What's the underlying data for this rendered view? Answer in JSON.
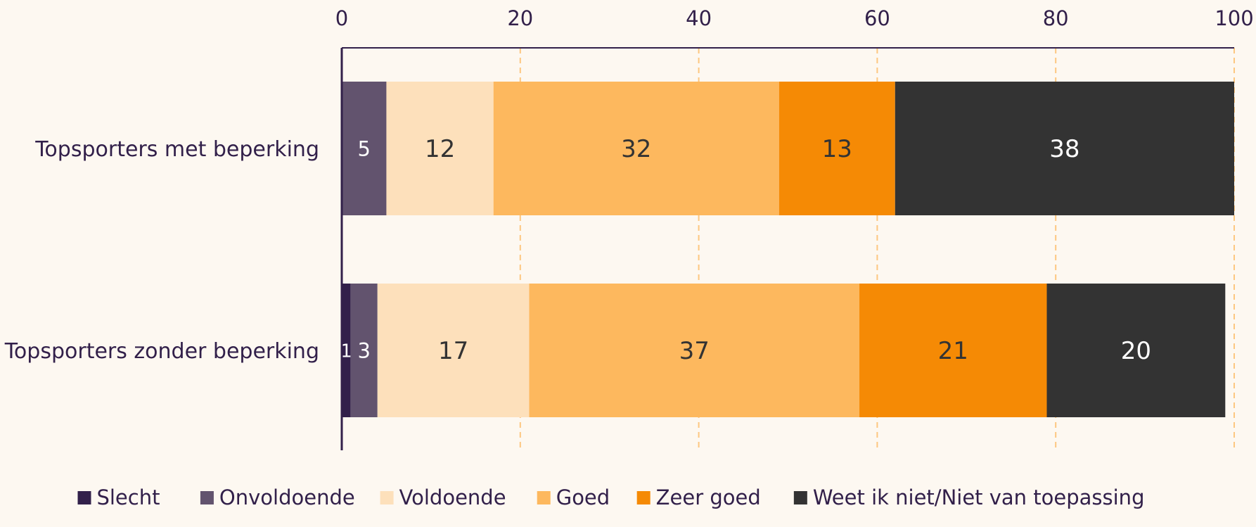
{
  "chart_data": {
    "type": "bar",
    "orientation": "horizontal",
    "stacked": true,
    "categories": [
      "Topsporters met beperking",
      "Topsporters zonder beperking"
    ],
    "series": [
      {
        "name": "Slecht",
        "color": "#32204a",
        "values": [
          0,
          1
        ],
        "labels": [
          "",
          "1"
        ],
        "label_color": "#ffffff"
      },
      {
        "name": "Onvoldoende",
        "color": "#62536e",
        "values": [
          5,
          3
        ],
        "labels": [
          "5",
          "3"
        ],
        "label_color": "#ffffff"
      },
      {
        "name": "Voldoende",
        "color": "#fde0bb",
        "values": [
          12,
          17
        ],
        "labels": [
          "12",
          "17"
        ],
        "label_color": "#333333"
      },
      {
        "name": "Goed",
        "color": "#fdb85e",
        "values": [
          32,
          37
        ],
        "labels": [
          "32",
          "37"
        ],
        "label_color": "#333333"
      },
      {
        "name": "Zeer goed",
        "color": "#f58a05",
        "values": [
          13,
          21
        ],
        "labels": [
          "13",
          "21"
        ],
        "label_color": "#333333"
      },
      {
        "name": "Weet ik niet/Niet van toepassing",
        "color": "#333333",
        "values": [
          38,
          20
        ],
        "labels": [
          "38",
          "20"
        ],
        "label_color": "#ffffff"
      }
    ],
    "xlim": [
      0,
      100
    ],
    "xticks": [
      0,
      20,
      40,
      60,
      80,
      100
    ],
    "tick_labels": [
      "0",
      "20",
      "40",
      "60",
      "80",
      "100"
    ],
    "x_axis_position": "top",
    "grid": true,
    "grid_style": "dashed",
    "grid_color": "#fdc780",
    "axis_color": "#32204a",
    "category_label_color": "#32204a",
    "legend_position": "bottom",
    "legend_text_color": "#32204a",
    "background": "#fdf8f1",
    "title": "",
    "xlabel": "",
    "ylabel": ""
  }
}
